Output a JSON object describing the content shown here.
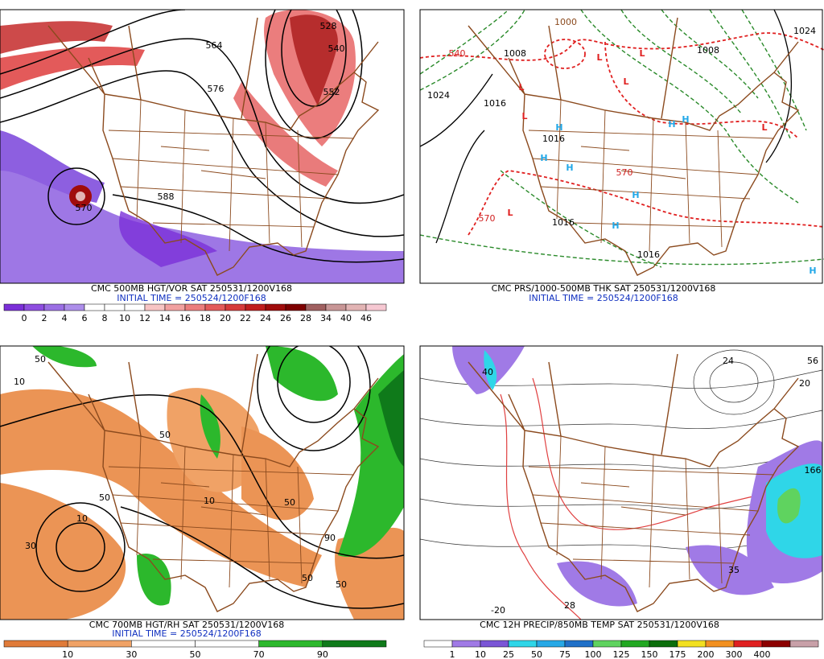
{
  "panels": [
    {
      "caption": "CMC 500MB HGT/VOR SAT 250531/1200V168",
      "initial_time": "INITIAL TIME = 250524/1200F168",
      "colorbar": {
        "labels": [
          0,
          2,
          4,
          6,
          8,
          10,
          12,
          14,
          16,
          18,
          20,
          22,
          24,
          26,
          28,
          34,
          40,
          46
        ],
        "colors": [
          "#7b2fd8",
          "#8e4ee0",
          "#9b6fe4",
          "#ad8eea",
          "#ffffff",
          "#ffffff",
          "#ffffff",
          "#f7c4c4",
          "#f1a0a0",
          "#eb7d7d",
          "#e35a5a",
          "#d63a3a",
          "#c01d1d",
          "#a00c0c",
          "#7e0000",
          "#a06060",
          "#c89696",
          "#e2b4b4",
          "#f6c8d2"
        ]
      },
      "map_labels": [
        "528",
        "540",
        "564",
        "576",
        "552",
        "588",
        "570"
      ]
    },
    {
      "caption": "CMC PRS/1000-500MB THK SAT 250531/1200V168",
      "initial_time": "INITIAL TIME = 250524/1200F168",
      "map_labels": [
        "L",
        "L",
        "L",
        "L",
        "L",
        "L",
        "L",
        "H",
        "H",
        "H",
        "H",
        "H",
        "H",
        "H",
        "H",
        "1024",
        "1016",
        "1016",
        "1016",
        "1016",
        "1008",
        "1008",
        "540",
        "570",
        "570",
        "1000",
        "1024"
      ]
    },
    {
      "caption": "CMC 700MB HGT/RH SAT 250531/1200V168",
      "initial_time": "INITIAL TIME = 250524/1200F168",
      "colorbar": {
        "labels": [
          10,
          30,
          50,
          70,
          90
        ],
        "colors": [
          "#e07b39",
          "#f0a266",
          "#ffffff",
          "#ffffff",
          "#2cb82c",
          "#0f7a1a"
        ]
      },
      "map_labels": [
        "50",
        "10",
        "50",
        "30",
        "50",
        "10",
        "50",
        "90",
        "50",
        "50",
        "10"
      ]
    },
    {
      "caption": "CMC 12H PRECIP/850MB TEMP SAT 250531/1200V168",
      "colorbar": {
        "labels": [
          1,
          10,
          25,
          50,
          75,
          100,
          125,
          150,
          175,
          200,
          300,
          400
        ],
        "colors": [
          "#ffffff",
          "#a07ae6",
          "#7a55d6",
          "#2fd6e8",
          "#27a8e6",
          "#2070c8",
          "#5fd35f",
          "#22a822",
          "#0b6e0b",
          "#f2e020",
          "#f29020",
          "#e02020",
          "#8c0000",
          "#c8a0a8"
        ]
      },
      "map_labels": [
        "40",
        "24",
        "35",
        "28",
        "166",
        "20",
        "56",
        "-20"
      ]
    }
  ]
}
